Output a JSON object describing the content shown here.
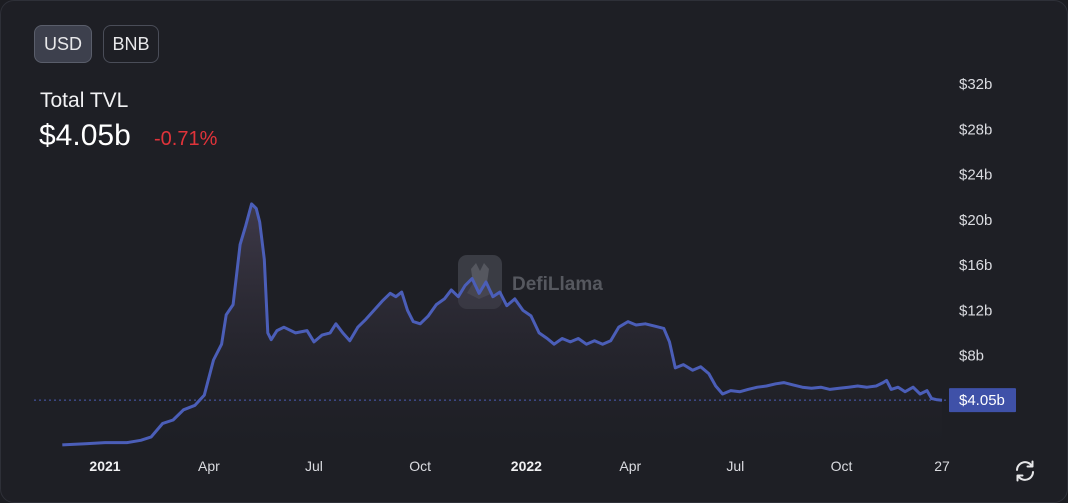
{
  "toggles": [
    {
      "label": "USD",
      "active": true
    },
    {
      "label": "BNB",
      "active": false
    }
  ],
  "summary": {
    "label": "Total TVL",
    "value": "$4.05b",
    "change": "-0.71%"
  },
  "watermark": "DefiLlama",
  "colors": {
    "line": "#4b5eb8",
    "change_negative": "#e0333a",
    "current_badge": "#3f51a8"
  },
  "chart_data": {
    "type": "area",
    "title": "Total TVL",
    "xlabel": "",
    "ylabel": "",
    "unit": "USD billions",
    "ylim": [
      0,
      32
    ],
    "yticks": [
      {
        "value": 8,
        "label": "$8b"
      },
      {
        "value": 12,
        "label": "$12b"
      },
      {
        "value": 16,
        "label": "$16b"
      },
      {
        "value": 20,
        "label": "$20b"
      },
      {
        "value": 24,
        "label": "$24b"
      },
      {
        "value": 28,
        "label": "$28b"
      },
      {
        "value": 32,
        "label": "$32b"
      }
    ],
    "xticks": [
      {
        "date": "2021-01-01",
        "label": "2021",
        "bold": true
      },
      {
        "date": "2021-04-01",
        "label": "Apr",
        "bold": false
      },
      {
        "date": "2021-07-01",
        "label": "Jul",
        "bold": false
      },
      {
        "date": "2021-10-01",
        "label": "Oct",
        "bold": false
      },
      {
        "date": "2022-01-01",
        "label": "2022",
        "bold": true
      },
      {
        "date": "2022-04-01",
        "label": "Apr",
        "bold": false
      },
      {
        "date": "2022-07-01",
        "label": "Jul",
        "bold": false
      },
      {
        "date": "2022-10-01",
        "label": "Oct",
        "bold": false
      },
      {
        "date": "2022-12-27",
        "label": "27",
        "bold": false
      }
    ],
    "current": {
      "value": 4.05,
      "label": "$4.05b"
    },
    "grid": false,
    "points": [
      [
        "2020-11-25",
        0.1
      ],
      [
        "2020-12-15",
        0.2
      ],
      [
        "2021-01-01",
        0.3
      ],
      [
        "2021-01-20",
        0.3
      ],
      [
        "2021-02-01",
        0.5
      ],
      [
        "2021-02-10",
        0.8
      ],
      [
        "2021-02-20",
        2.0
      ],
      [
        "2021-03-01",
        2.3
      ],
      [
        "2021-03-10",
        3.2
      ],
      [
        "2021-03-20",
        3.6
      ],
      [
        "2021-03-28",
        4.5
      ],
      [
        "2021-04-05",
        7.6
      ],
      [
        "2021-04-12",
        9.0
      ],
      [
        "2021-04-16",
        11.6
      ],
      [
        "2021-04-22",
        12.5
      ],
      [
        "2021-04-28",
        17.8
      ],
      [
        "2021-05-03",
        19.5
      ],
      [
        "2021-05-08",
        21.4
      ],
      [
        "2021-05-12",
        21.0
      ],
      [
        "2021-05-15",
        19.8
      ],
      [
        "2021-05-19",
        16.5
      ],
      [
        "2021-05-22",
        10.0
      ],
      [
        "2021-05-25",
        9.4
      ],
      [
        "2021-05-30",
        10.2
      ],
      [
        "2021-06-05",
        10.5
      ],
      [
        "2021-06-15",
        10.0
      ],
      [
        "2021-06-25",
        10.2
      ],
      [
        "2021-07-01",
        9.2
      ],
      [
        "2021-07-08",
        9.8
      ],
      [
        "2021-07-15",
        10.0
      ],
      [
        "2021-07-20",
        10.8
      ],
      [
        "2021-07-26",
        10.0
      ],
      [
        "2021-08-01",
        9.3
      ],
      [
        "2021-08-08",
        10.5
      ],
      [
        "2021-08-15",
        11.2
      ],
      [
        "2021-08-22",
        12.0
      ],
      [
        "2021-08-29",
        12.8
      ],
      [
        "2021-09-05",
        13.5
      ],
      [
        "2021-09-10",
        13.2
      ],
      [
        "2021-09-15",
        13.6
      ],
      [
        "2021-09-20",
        12.0
      ],
      [
        "2021-09-25",
        11.0
      ],
      [
        "2021-10-01",
        10.8
      ],
      [
        "2021-10-08",
        11.5
      ],
      [
        "2021-10-15",
        12.5
      ],
      [
        "2021-10-22",
        13.0
      ],
      [
        "2021-10-28",
        13.8
      ],
      [
        "2021-11-03",
        13.2
      ],
      [
        "2021-11-09",
        14.2
      ],
      [
        "2021-11-15",
        14.8
      ],
      [
        "2021-11-21",
        13.5
      ],
      [
        "2021-11-27",
        14.5
      ],
      [
        "2021-12-03",
        13.2
      ],
      [
        "2021-12-09",
        13.6
      ],
      [
        "2021-12-15",
        12.4
      ],
      [
        "2021-12-22",
        13.0
      ],
      [
        "2021-12-29",
        12.0
      ],
      [
        "2022-01-05",
        11.5
      ],
      [
        "2022-01-12",
        10.0
      ],
      [
        "2022-01-19",
        9.5
      ],
      [
        "2022-01-25",
        9.0
      ],
      [
        "2022-02-01",
        9.5
      ],
      [
        "2022-02-08",
        9.2
      ],
      [
        "2022-02-15",
        9.5
      ],
      [
        "2022-02-22",
        9.0
      ],
      [
        "2022-03-01",
        9.3
      ],
      [
        "2022-03-08",
        9.0
      ],
      [
        "2022-03-15",
        9.3
      ],
      [
        "2022-03-22",
        10.5
      ],
      [
        "2022-03-30",
        11.0
      ],
      [
        "2022-04-06",
        10.7
      ],
      [
        "2022-04-14",
        10.8
      ],
      [
        "2022-04-22",
        10.6
      ],
      [
        "2022-04-30",
        10.4
      ],
      [
        "2022-05-05",
        9.2
      ],
      [
        "2022-05-10",
        6.9
      ],
      [
        "2022-05-17",
        7.2
      ],
      [
        "2022-05-25",
        6.7
      ],
      [
        "2022-06-01",
        7.0
      ],
      [
        "2022-06-08",
        6.4
      ],
      [
        "2022-06-14",
        5.3
      ],
      [
        "2022-06-20",
        4.6
      ],
      [
        "2022-06-27",
        4.9
      ],
      [
        "2022-07-05",
        4.8
      ],
      [
        "2022-07-12",
        5.0
      ],
      [
        "2022-07-20",
        5.2
      ],
      [
        "2022-07-28",
        5.3
      ],
      [
        "2022-08-05",
        5.5
      ],
      [
        "2022-08-12",
        5.6
      ],
      [
        "2022-08-20",
        5.4
      ],
      [
        "2022-08-28",
        5.2
      ],
      [
        "2022-09-05",
        5.1
      ],
      [
        "2022-09-13",
        5.2
      ],
      [
        "2022-09-21",
        5.0
      ],
      [
        "2022-09-29",
        5.1
      ],
      [
        "2022-10-07",
        5.2
      ],
      [
        "2022-10-15",
        5.3
      ],
      [
        "2022-10-23",
        5.2
      ],
      [
        "2022-10-31",
        5.3
      ],
      [
        "2022-11-06",
        5.6
      ],
      [
        "2022-11-09",
        5.8
      ],
      [
        "2022-11-13",
        5.0
      ],
      [
        "2022-11-19",
        5.2
      ],
      [
        "2022-11-25",
        4.8
      ],
      [
        "2022-12-02",
        5.2
      ],
      [
        "2022-12-08",
        4.6
      ],
      [
        "2022-12-14",
        4.9
      ],
      [
        "2022-12-18",
        4.2
      ],
      [
        "2022-12-22",
        4.1
      ],
      [
        "2022-12-27",
        4.05
      ]
    ]
  }
}
